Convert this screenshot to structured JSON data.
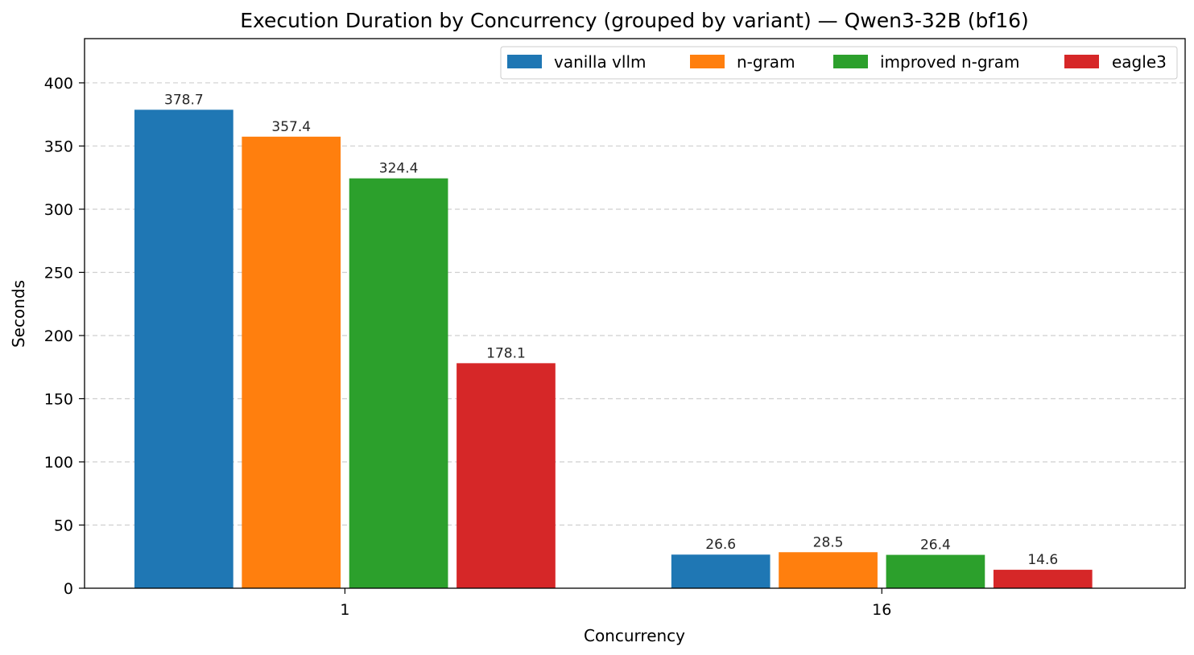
{
  "chart_data": {
    "type": "bar",
    "title": "Execution Duration by Concurrency (grouped by variant) — Qwen3-32B (bf16)",
    "xlabel": "Concurrency",
    "ylabel": "Seconds",
    "categories": [
      "1",
      "16"
    ],
    "series": [
      {
        "name": "vanilla vllm",
        "color": "#1f77b4",
        "values": [
          378.7,
          26.6
        ],
        "labels": [
          "378.7",
          "26.6"
        ]
      },
      {
        "name": "n-gram",
        "color": "#ff7f0e",
        "values": [
          357.4,
          28.5
        ],
        "labels": [
          "357.4",
          "28.5"
        ]
      },
      {
        "name": "improved n-gram",
        "color": "#2ca02c",
        "values": [
          324.4,
          26.4
        ],
        "labels": [
          "324.4",
          "26.4"
        ]
      },
      {
        "name": "eagle3",
        "color": "#d62728",
        "values": [
          178.1,
          14.6
        ],
        "labels": [
          "178.1",
          "14.6"
        ]
      }
    ],
    "ylim": [
      0,
      435
    ],
    "yticks": [
      "0",
      "50",
      "100",
      "150",
      "200",
      "250",
      "300",
      "350",
      "400"
    ],
    "grid": "y-dashed",
    "legend_position": "top-right"
  }
}
